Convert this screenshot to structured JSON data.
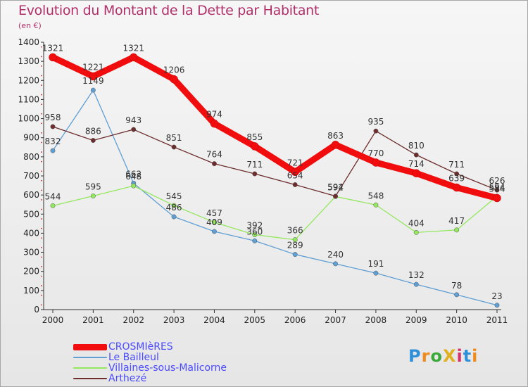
{
  "chart_data": {
    "type": "line",
    "title": "Evolution du Montant de la Dette par Habitant",
    "subtitle": "(en €)",
    "x": [
      "2000",
      "2001",
      "2002",
      "2003",
      "2004",
      "2005",
      "2006",
      "2007",
      "2008",
      "2009",
      "2010",
      "2011"
    ],
    "ylim": [
      0,
      1400
    ],
    "yticks": [
      0,
      100,
      200,
      300,
      400,
      500,
      600,
      700,
      800,
      900,
      1000,
      1100,
      1200,
      1300,
      1400
    ],
    "grid": false,
    "legend_position": "bottom-left",
    "series": [
      {
        "name": "CROSMIèRES",
        "color": "#f10d0d",
        "values": [
          1321,
          1221,
          1321,
          1206,
          974,
          855,
          721,
          863,
          770,
          714,
          639,
          584
        ]
      },
      {
        "name": "Le Bailleul",
        "color": "#5f9fd3",
        "values": [
          832,
          1149,
          662,
          486,
          409,
          360,
          289,
          240,
          191,
          132,
          78,
          23
        ]
      },
      {
        "name": "Villaines-sous-Malicorne",
        "color": "#94e85f",
        "values": [
          544,
          595,
          648,
          545,
          457,
          392,
          366,
          592,
          548,
          404,
          417,
          594
        ]
      },
      {
        "name": "Arthezé",
        "color": "#6d2d2d",
        "values": [
          958,
          886,
          943,
          851,
          764,
          711,
          654,
          594,
          935,
          810,
          711,
          626
        ]
      }
    ]
  },
  "logo": {
    "text": "ProXiti"
  }
}
